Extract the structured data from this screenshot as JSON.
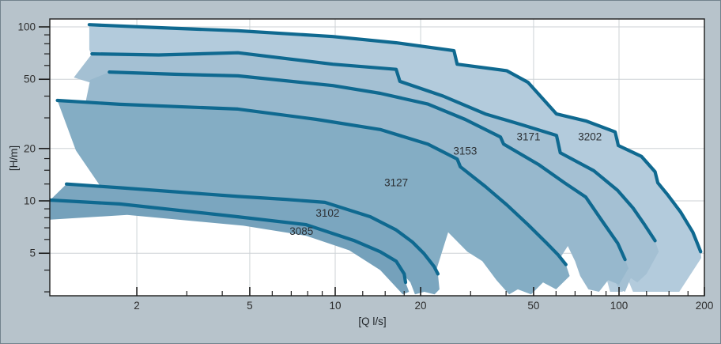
{
  "window": {
    "background": "#b7c3cb",
    "plot_background": "#ffffff",
    "frame_color": "#72828d"
  },
  "chart_data": {
    "type": "area",
    "subtype": "pump-performance-envelopes",
    "title": "",
    "xlabel": "[Q l/s]",
    "ylabel": "[H/m]",
    "x_scale": "log",
    "y_scale": "log",
    "x_range": [
      0.99,
      205
    ],
    "y_range": [
      2.85,
      111
    ],
    "grid": true,
    "grid_color": "#cdd2d6",
    "axis_color": "#1c1c1c",
    "tick_label_color": "#2e2e2e",
    "curve_color": "#0f6990",
    "x_major_ticks": [
      2,
      5,
      10,
      20,
      50,
      100,
      200
    ],
    "x_minor_ticks": [
      3,
      4,
      6,
      7,
      8,
      9,
      12.5,
      15,
      17.5,
      30,
      40,
      60,
      70,
      80,
      90,
      125,
      150,
      175
    ],
    "y_major_ticks": [
      5,
      10,
      20,
      50,
      100
    ],
    "y_minor_ticks": [
      3,
      4,
      6,
      7,
      8,
      9,
      12.5,
      15,
      17.5,
      30,
      40,
      60,
      70,
      80,
      90
    ],
    "series": [
      {
        "name": "3202",
        "fill_color": "#b3cbdc",
        "label_pos": [
          79,
          23.3
        ],
        "upper_curve": [
          [
            1.36,
            103
          ],
          [
            2.4,
            99
          ],
          [
            4.54,
            95
          ],
          [
            9.8,
            88
          ],
          [
            16.4,
            81
          ],
          [
            26.2,
            73
          ],
          [
            26.9,
            61
          ],
          [
            40.2,
            56
          ],
          [
            47.8,
            48
          ],
          [
            60.2,
            31.6
          ],
          [
            76.4,
            28.8
          ],
          [
            96.9,
            24.9
          ],
          [
            99.4,
            20.8
          ],
          [
            120,
            18
          ],
          [
            134,
            14.7
          ],
          [
            137,
            12.7
          ],
          [
            148,
            10.9
          ],
          [
            165,
            8.6
          ],
          [
            182,
            6.6
          ],
          [
            194,
            5.1
          ]
        ],
        "lower_boundary": [
          [
            195,
            4.7
          ],
          [
            163,
            3.0
          ],
          [
            112,
            3.0
          ],
          [
            107,
            3.6
          ],
          [
            103,
            3.0
          ],
          [
            93,
            3.0
          ],
          [
            87,
            4.5
          ],
          [
            84,
            6.4
          ],
          [
            67,
            11.5
          ],
          [
            52,
            15.7
          ],
          [
            34,
            27.9
          ],
          [
            21.2,
            37
          ],
          [
            14.4,
            45.6
          ],
          [
            9.8,
            49.6
          ],
          [
            4.54,
            58
          ],
          [
            2.39,
            61
          ],
          [
            1.39,
            68
          ],
          [
            1.36,
            74
          ]
        ]
      },
      {
        "name": "3171",
        "fill_color": "#a4c0d3",
        "label_pos": [
          48,
          23.3
        ],
        "upper_curve": [
          [
            1.39,
            70
          ],
          [
            2.39,
            69
          ],
          [
            4.54,
            71
          ],
          [
            9.8,
            61
          ],
          [
            16.4,
            57
          ],
          [
            16.9,
            48.6
          ],
          [
            24,
            40
          ],
          [
            33.8,
            31.6
          ],
          [
            45.7,
            27.3
          ],
          [
            60.2,
            23.8
          ],
          [
            62.1,
            18.9
          ],
          [
            81.5,
            14.9
          ],
          [
            98.8,
            11.5
          ],
          [
            112,
            9.1
          ],
          [
            123,
            7.3
          ],
          [
            134,
            5.9
          ]
        ],
        "lower_boundary": [
          [
            138,
            5.1
          ],
          [
            125,
            3.8
          ],
          [
            116,
            3.4
          ],
          [
            110,
            3.6
          ],
          [
            105,
            3.0
          ],
          [
            100,
            3.1
          ],
          [
            94,
            3.8
          ],
          [
            87,
            5.0
          ],
          [
            82,
            6.3
          ],
          [
            76,
            9.3
          ],
          [
            64,
            11.2
          ],
          [
            52,
            14.3
          ],
          [
            39,
            18.7
          ],
          [
            28.7,
            25.9
          ],
          [
            21.2,
            31.6
          ],
          [
            14.4,
            36.6
          ],
          [
            9.8,
            40.6
          ],
          [
            4.54,
            46
          ],
          [
            2.72,
            47
          ],
          [
            1.6,
            48.6
          ],
          [
            1.51,
            45.6
          ],
          [
            1.2,
            51.2
          ]
        ]
      },
      {
        "name": "3153",
        "fill_color": "#97b8cd",
        "label_pos": [
          28.7,
          19.3
        ],
        "upper_curve": [
          [
            1.6,
            55
          ],
          [
            2.72,
            53.4
          ],
          [
            4.54,
            52.3
          ],
          [
            9.8,
            46
          ],
          [
            14.4,
            41.5
          ],
          [
            21.2,
            36
          ],
          [
            28.7,
            29.4
          ],
          [
            38.2,
            23.3
          ],
          [
            39.2,
            21.2
          ],
          [
            52,
            16.2
          ],
          [
            64.3,
            12.7
          ],
          [
            76.4,
            10.5
          ],
          [
            88,
            7.5
          ],
          [
            99,
            5.7
          ],
          [
            105,
            4.6
          ]
        ],
        "lower_boundary": [
          [
            108,
            4.1
          ],
          [
            100,
            3.3
          ],
          [
            91.5,
            3.5
          ],
          [
            85,
            3.0
          ],
          [
            78,
            3.1
          ],
          [
            73,
            3.7
          ],
          [
            70,
            4.5
          ],
          [
            66,
            5.5
          ],
          [
            61,
            4.5
          ],
          [
            56,
            5.0
          ],
          [
            46,
            6.6
          ],
          [
            34,
            10.6
          ],
          [
            27,
            15.4
          ],
          [
            21.2,
            18.7
          ],
          [
            14.4,
            22.6
          ],
          [
            8.6,
            25.9
          ],
          [
            4.54,
            29.7
          ],
          [
            1.74,
            31.6
          ],
          [
            1.22,
            19.8
          ],
          [
            1.37,
            49.6
          ]
        ]
      },
      {
        "name": "3127",
        "fill_color": "#84adc4",
        "label_pos": [
          16.4,
          12.7
        ],
        "upper_curve": [
          [
            1.05,
            37.8
          ],
          [
            1.74,
            35.9
          ],
          [
            4.54,
            33.7
          ],
          [
            8.6,
            29.4
          ],
          [
            14.4,
            25.7
          ],
          [
            21.2,
            21.2
          ],
          [
            26.9,
            17.4
          ],
          [
            27.6,
            15.7
          ],
          [
            33.8,
            12.1
          ],
          [
            40.2,
            9.5
          ],
          [
            47.8,
            7.3
          ],
          [
            55.7,
            5.7
          ],
          [
            61,
            4.9
          ],
          [
            65,
            4.3
          ]
        ],
        "lower_boundary": [
          [
            67,
            3.7
          ],
          [
            60,
            3.1
          ],
          [
            54,
            3.4
          ],
          [
            49,
            2.9
          ],
          [
            44,
            3.1
          ],
          [
            41,
            2.9
          ],
          [
            37,
            3.5
          ],
          [
            33,
            4.5
          ],
          [
            29.2,
            5.1
          ],
          [
            25,
            6.6
          ],
          [
            22.6,
            3.9
          ],
          [
            21.2,
            4.2
          ],
          [
            16.4,
            5.2
          ],
          [
            11.9,
            6.1
          ],
          [
            8.6,
            6.6
          ],
          [
            4.54,
            8.4
          ],
          [
            2.39,
            10.1
          ],
          [
            1.74,
            11.3
          ],
          [
            1.48,
            12.3
          ],
          [
            1.22,
            19.5
          ]
        ]
      },
      {
        "name": "3102",
        "fill_color": "#7ba6bf",
        "label_pos": [
          9.4,
          8.5
        ],
        "upper_curve": [
          [
            1.13,
            12.5
          ],
          [
            1.74,
            11.9
          ],
          [
            4.54,
            10.6
          ],
          [
            6.7,
            10.2
          ],
          [
            9.2,
            9.8
          ],
          [
            13.3,
            8.1
          ],
          [
            16.4,
            6.8
          ],
          [
            18.7,
            5.8
          ],
          [
            20.5,
            5.0
          ],
          [
            22.3,
            4.2
          ],
          [
            23,
            3.8
          ]
        ],
        "lower_boundary": [
          [
            23.3,
            3.1
          ],
          [
            22.4,
            2.9
          ],
          [
            20.6,
            3.0
          ],
          [
            19.1,
            2.9
          ],
          [
            18.4,
            3.4
          ],
          [
            16.4,
            4.2
          ],
          [
            11.7,
            5.6
          ],
          [
            7.9,
            6.9
          ],
          [
            4.54,
            7.6
          ],
          [
            1.74,
            9.1
          ],
          [
            0.99,
            9.5
          ],
          [
            0.99,
            10.1
          ]
        ]
      },
      {
        "name": "3085",
        "fill_color": "#75a1bb",
        "label_pos": [
          7.6,
          6.7
        ],
        "upper_curve": [
          [
            0.99,
            10.1
          ],
          [
            1.74,
            9.6
          ],
          [
            4.54,
            8.1
          ],
          [
            7.9,
            7.3
          ],
          [
            11.7,
            5.9
          ],
          [
            14.4,
            5.1
          ],
          [
            16.4,
            4.5
          ],
          [
            17.5,
            3.8
          ],
          [
            17.7,
            3.4
          ]
        ],
        "lower_boundary": [
          [
            18.2,
            3.0
          ],
          [
            17.3,
            2.9
          ],
          [
            14.4,
            4.0
          ],
          [
            11.2,
            5.2
          ],
          [
            7.9,
            6.3
          ],
          [
            4.75,
            7.2
          ],
          [
            1.85,
            8.3
          ],
          [
            0.99,
            7.8
          ]
        ]
      }
    ]
  }
}
